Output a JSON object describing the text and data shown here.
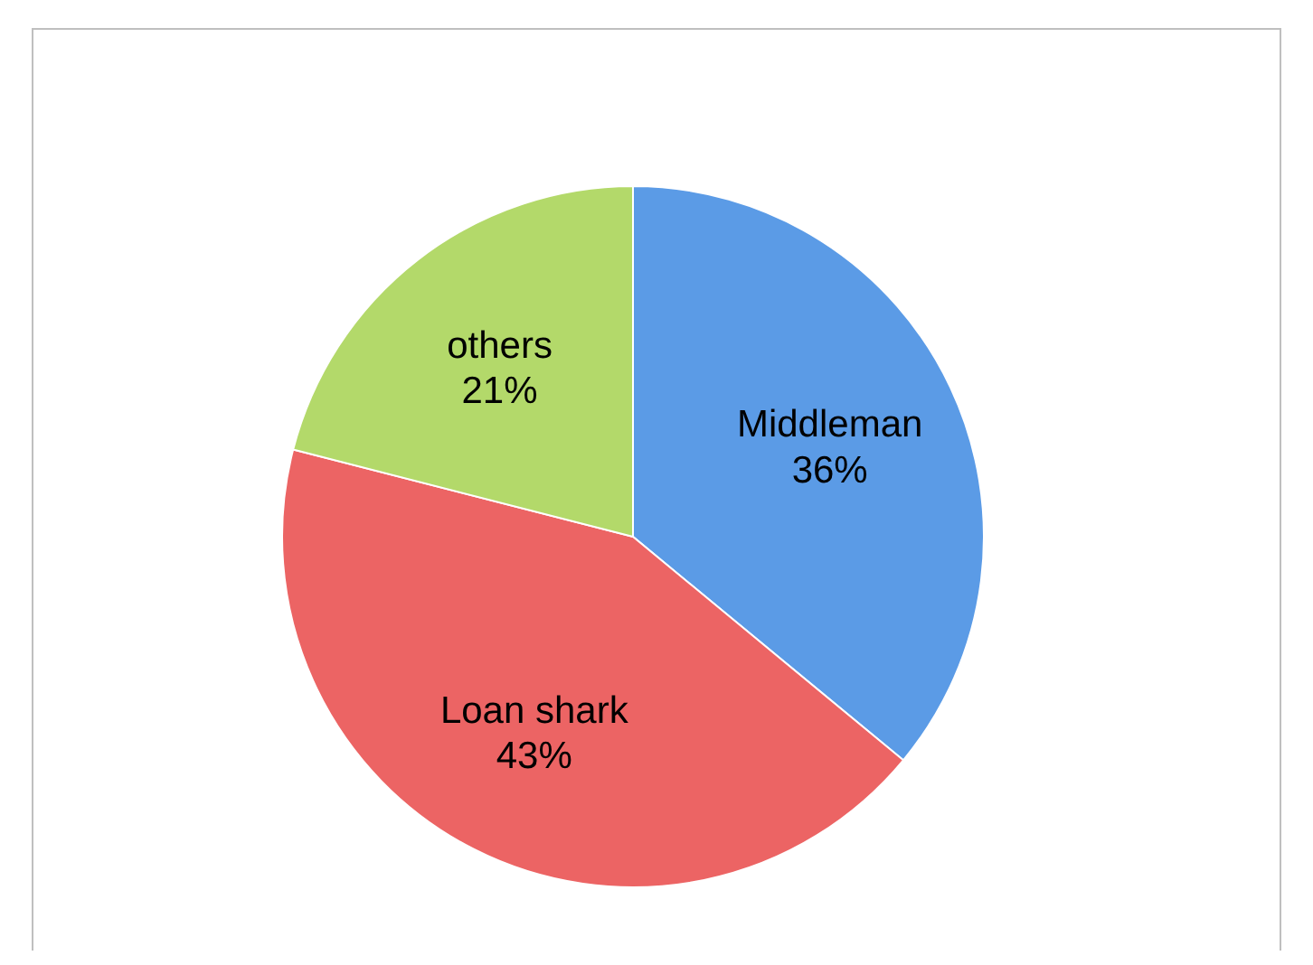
{
  "chart_data": {
    "type": "pie",
    "categories": [
      "Middleman",
      "Loan shark",
      "others"
    ],
    "values": [
      36,
      43,
      21
    ],
    "colors": [
      "#5b9be6",
      "#ec6464",
      "#b3d96a"
    ],
    "value_labels": [
      "36%",
      "43%",
      "21%"
    ]
  }
}
